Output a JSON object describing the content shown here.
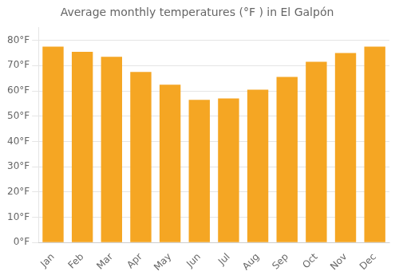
{
  "chart_data": {
    "type": "bar",
    "title": "Average monthly temperatures (°F ) in El Galpón",
    "categories": [
      "Jan",
      "Feb",
      "Mar",
      "Apr",
      "May",
      "Jun",
      "Jul",
      "Aug",
      "Sep",
      "Oct",
      "Nov",
      "Dec"
    ],
    "values": [
      77.5,
      75.5,
      73.5,
      67.5,
      62.5,
      56.5,
      57.0,
      60.5,
      65.5,
      71.5,
      75.0,
      77.5
    ],
    "color": "#F5A623",
    "ylim": [
      0,
      85
    ],
    "yticks": [
      {
        "value": 0,
        "label": "0°F"
      },
      {
        "value": 10,
        "label": "10°F"
      },
      {
        "value": 20,
        "label": "20°F"
      },
      {
        "value": 30,
        "label": "30°F"
      },
      {
        "value": 40,
        "label": "40°F"
      },
      {
        "value": 50,
        "label": "50°F"
      },
      {
        "value": 60,
        "label": "60°F"
      },
      {
        "value": 70,
        "label": "70°F"
      },
      {
        "value": 80,
        "label": "80°F"
      }
    ],
    "grid": true
  }
}
